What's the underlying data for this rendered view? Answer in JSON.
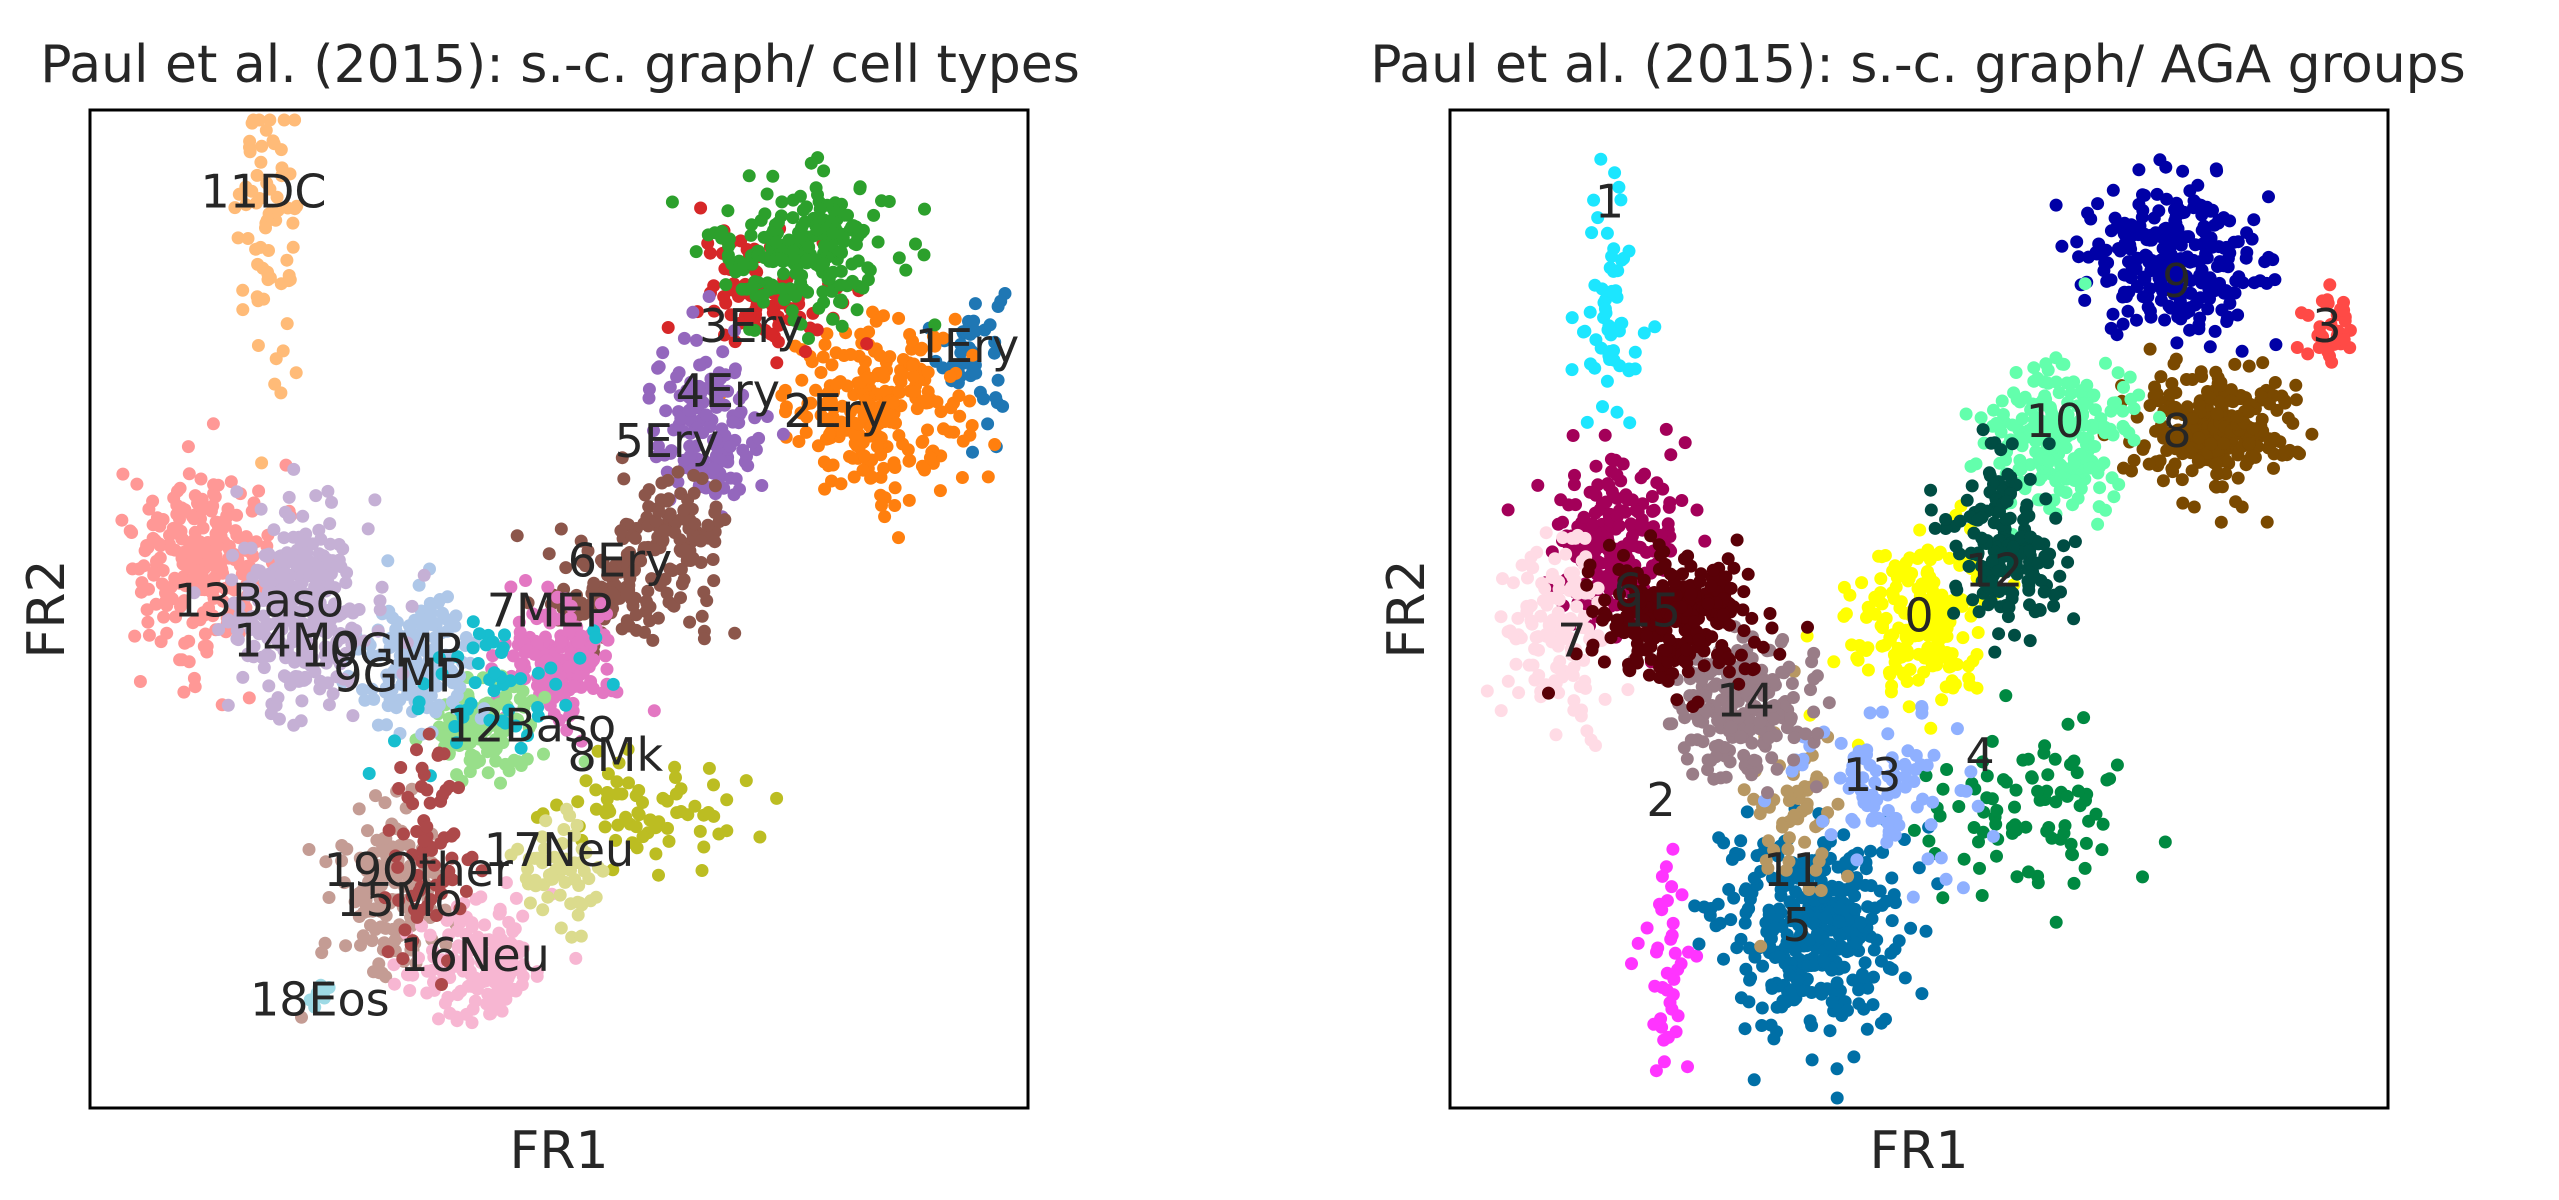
{
  "figure": {
    "background": "#ffffff"
  },
  "chart_data": [
    {
      "type": "scatter",
      "title": "Paul et al. (2015): s.-c. graph/ cell types",
      "xlabel": "FR1",
      "ylabel": "FR2",
      "xlim": [
        0,
        100
      ],
      "ylim": [
        0,
        100
      ],
      "grid": false,
      "legend": "none",
      "groups": [
        {
          "label": "1Ery",
          "color": "#1f77b4",
          "center": [
            94,
            76
          ],
          "spread": [
            3,
            6
          ],
          "n": 45
        },
        {
          "label": "2Ery",
          "color": "#ff7f0e",
          "center": [
            84,
            70
          ],
          "spread": [
            8,
            7
          ],
          "n": 240
        },
        {
          "label": "3Ery",
          "color": "#d62728",
          "center": [
            72,
            82
          ],
          "spread": [
            6,
            5
          ],
          "n": 90
        },
        {
          "label": "3Ery",
          "color": "#2ca02c",
          "center": [
            76,
            86
          ],
          "spread": [
            8,
            6
          ],
          "n": 210
        },
        {
          "label": "4Ery",
          "color": "#9467bd",
          "center": [
            66,
            68
          ],
          "spread": [
            5,
            7
          ],
          "n": 150
        },
        {
          "label": "5Ery",
          "color": "#8c564b",
          "center": [
            62,
            56
          ],
          "spread": [
            5,
            7
          ],
          "n": 120
        },
        {
          "label": "6Ery",
          "color": "#8c564b",
          "center": [
            55,
            51
          ],
          "spread": [
            5,
            4
          ],
          "n": 90
        },
        {
          "label": "7MEP",
          "color": "#e377c2",
          "center": [
            50,
            45
          ],
          "spread": [
            5,
            5
          ],
          "n": 150
        },
        {
          "label": "8Mk",
          "color": "#bcbd22",
          "center": [
            60,
            30
          ],
          "spread": [
            9,
            5
          ],
          "n": 70
        },
        {
          "label": "9GMP",
          "color": "#98df8a",
          "center": [
            42,
            38
          ],
          "spread": [
            5,
            4
          ],
          "n": 120
        },
        {
          "label": "10GMP",
          "color": "#aec7e8",
          "center": [
            35,
            45
          ],
          "spread": [
            5,
            5
          ],
          "n": 160
        },
        {
          "label": "11DC",
          "color": "#ffbb78",
          "center": [
            19,
            88
          ],
          "spread": [
            3,
            12
          ],
          "n": 70
        },
        {
          "label": "12Baso",
          "color": "#17becf",
          "center": [
            44,
            42
          ],
          "spread": [
            8,
            6
          ],
          "n": 50
        },
        {
          "label": "13Baso",
          "color": "#ff9896",
          "center": [
            12,
            55
          ],
          "spread": [
            6,
            8
          ],
          "n": 240
        },
        {
          "label": "14Mo",
          "color": "#c5b0d5",
          "center": [
            22,
            50
          ],
          "spread": [
            6,
            8
          ],
          "n": 320
        },
        {
          "label": "15Mo",
          "color": "#c49c94",
          "center": [
            32,
            22
          ],
          "spread": [
            5,
            7
          ],
          "n": 150
        },
        {
          "label": "16Neu",
          "color": "#f7b6d2",
          "center": [
            42,
            14
          ],
          "spread": [
            6,
            5
          ],
          "n": 160
        },
        {
          "label": "17Neu",
          "color": "#dbdb8d",
          "center": [
            50,
            24
          ],
          "spread": [
            4,
            5
          ],
          "n": 60
        },
        {
          "label": "18Eos",
          "color": "#9edae5",
          "center": [
            24,
            11
          ],
          "spread": [
            1,
            1
          ],
          "n": 12
        },
        {
          "label": "19Other",
          "color": "#ad494a",
          "center": [
            36,
            26
          ],
          "spread": [
            4,
            10
          ],
          "n": 70
        }
      ],
      "annotations": [
        {
          "text": "11DC",
          "x": 18.5,
          "y": 91.5
        },
        {
          "text": "3Ery",
          "x": 70.5,
          "y": 78.0
        },
        {
          "text": "1Ery",
          "x": 93.5,
          "y": 76.0
        },
        {
          "text": "4Ery",
          "x": 68.0,
          "y": 71.5
        },
        {
          "text": "2Ery",
          "x": 79.5,
          "y": 69.5
        },
        {
          "text": "5Ery",
          "x": 61.5,
          "y": 66.5
        },
        {
          "text": "6Ery",
          "x": 56.5,
          "y": 54.5
        },
        {
          "text": "7MEP",
          "x": 49.0,
          "y": 49.5
        },
        {
          "text": "13Baso",
          "x": 18.0,
          "y": 50.5
        },
        {
          "text": "14Mo",
          "x": 22.0,
          "y": 46.5
        },
        {
          "text": "10GMP",
          "x": 31.0,
          "y": 45.5
        },
        {
          "text": "9GMP",
          "x": 33.0,
          "y": 43.0
        },
        {
          "text": "12Baso",
          "x": 47.0,
          "y": 38.0
        },
        {
          "text": "8Mk",
          "x": 56.0,
          "y": 35.0
        },
        {
          "text": "17Neu",
          "x": 50.0,
          "y": 25.5
        },
        {
          "text": "19Other",
          "x": 35.0,
          "y": 23.5
        },
        {
          "text": "15Mo",
          "x": 33.0,
          "y": 20.5
        },
        {
          "text": "16Neu",
          "x": 41.0,
          "y": 15.0
        },
        {
          "text": "18Eos",
          "x": 24.5,
          "y": 10.5
        }
      ]
    },
    {
      "type": "scatter",
      "title": "Paul et al. (2015): s.-c. graph/ AGA groups",
      "xlabel": "FR1",
      "ylabel": "FR2",
      "xlim": [
        0,
        100
      ],
      "ylim": [
        0,
        100
      ],
      "grid": false,
      "legend": "none",
      "groups": [
        {
          "label": "0",
          "color": "#ffff00",
          "center": [
            50,
            49
          ],
          "spread": [
            6,
            7
          ],
          "n": 200
        },
        {
          "label": "1",
          "color": "#1ce6ff",
          "center": [
            17,
            80
          ],
          "spread": [
            3,
            12
          ],
          "n": 60
        },
        {
          "label": "2",
          "color": "#ff34ff",
          "center": [
            23,
            14
          ],
          "spread": [
            3,
            10
          ],
          "n": 40
        },
        {
          "label": "3",
          "color": "#ff4a46",
          "center": [
            94,
            78
          ],
          "spread": [
            2,
            3
          ],
          "n": 40
        },
        {
          "label": "4",
          "color": "#008941",
          "center": [
            62,
            30
          ],
          "spread": [
            10,
            6
          ],
          "n": 90
        },
        {
          "label": "5",
          "color": "#006fa6",
          "center": [
            38,
            18
          ],
          "spread": [
            8,
            8
          ],
          "n": 380
        },
        {
          "label": "6",
          "color": "#a30059",
          "center": [
            18,
            56
          ],
          "spread": [
            6,
            7
          ],
          "n": 230
        },
        {
          "label": "7",
          "color": "#ffdbe5",
          "center": [
            12,
            48
          ],
          "spread": [
            5,
            8
          ],
          "n": 140
        },
        {
          "label": "8",
          "color": "#7a4900",
          "center": [
            81,
            68
          ],
          "spread": [
            7,
            5
          ],
          "n": 260
        },
        {
          "label": "9",
          "color": "#0000a6",
          "center": [
            77,
            85
          ],
          "spread": [
            8,
            6
          ],
          "n": 270
        },
        {
          "label": "10",
          "color": "#63ffac",
          "center": [
            65,
            68
          ],
          "spread": [
            6,
            6
          ],
          "n": 230
        },
        {
          "label": "11",
          "color": "#b79762",
          "center": [
            37,
            30
          ],
          "spread": [
            4,
            8
          ],
          "n": 60
        },
        {
          "label": "12",
          "color": "#004d43",
          "center": [
            59,
            56
          ],
          "spread": [
            5,
            7
          ],
          "n": 170
        },
        {
          "label": "13",
          "color": "#8fb0ff",
          "center": [
            46,
            32
          ],
          "spread": [
            8,
            7
          ],
          "n": 90
        },
        {
          "label": "14",
          "color": "#997d87",
          "center": [
            31,
            40
          ],
          "spread": [
            6,
            6
          ],
          "n": 220
        },
        {
          "label": "15",
          "color": "#5a0007",
          "center": [
            24,
            49
          ],
          "spread": [
            7,
            5
          ],
          "n": 280
        }
      ],
      "annotations": [
        {
          "text": "1",
          "x": 17.0,
          "y": 90.5
        },
        {
          "text": "9",
          "x": 77.5,
          "y": 82.5
        },
        {
          "text": "3",
          "x": 93.5,
          "y": 78.0
        },
        {
          "text": "10",
          "x": 64.5,
          "y": 68.5
        },
        {
          "text": "8",
          "x": 77.5,
          "y": 67.5
        },
        {
          "text": "12",
          "x": 58.0,
          "y": 53.5
        },
        {
          "text": "6",
          "x": 19.0,
          "y": 51.5
        },
        {
          "text": "15",
          "x": 21.5,
          "y": 49.5
        },
        {
          "text": "0",
          "x": 50.0,
          "y": 49.0
        },
        {
          "text": "7",
          "x": 13.0,
          "y": 46.5
        },
        {
          "text": "14",
          "x": 31.5,
          "y": 40.5
        },
        {
          "text": "4",
          "x": 56.5,
          "y": 35.0
        },
        {
          "text": "13",
          "x": 45.0,
          "y": 33.0
        },
        {
          "text": "2",
          "x": 22.5,
          "y": 30.5
        },
        {
          "text": "11",
          "x": 36.5,
          "y": 23.5
        },
        {
          "text": "5",
          "x": 37.0,
          "y": 18.0
        }
      ]
    }
  ]
}
